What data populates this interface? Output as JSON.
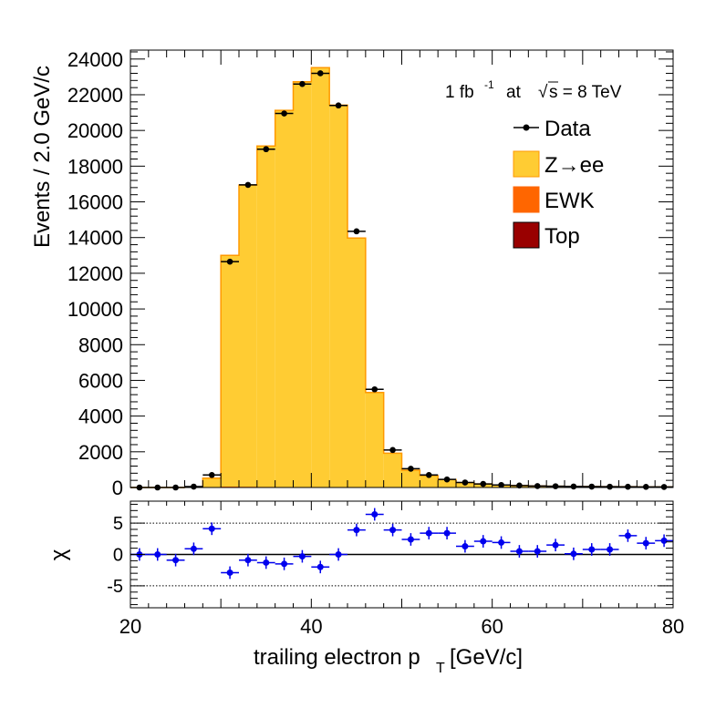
{
  "chart_data": [
    {
      "type": "bar",
      "panel": "main",
      "ylabel": "Events / 2.0 GeV/c",
      "xlim": [
        20,
        80
      ],
      "ylim": [
        0,
        24500
      ],
      "yticks": [
        0,
        2000,
        4000,
        6000,
        8000,
        10000,
        12000,
        14000,
        16000,
        18000,
        20000,
        22000,
        24000
      ],
      "bin_width": 2,
      "bin_edges_start": [
        20,
        22,
        24,
        26,
        28,
        30,
        32,
        34,
        36,
        38,
        40,
        42,
        44,
        46,
        48,
        50,
        52,
        54,
        56,
        58,
        60,
        62,
        64,
        66,
        68,
        70,
        72,
        74,
        76,
        78
      ],
      "series": [
        {
          "name": "Z→ee",
          "kind": "stacked-histogram",
          "color": "#ffcc33",
          "edge": "#ff9900",
          "values": [
            0,
            0,
            0,
            20,
            500,
            12950,
            16900,
            19100,
            21100,
            22700,
            23500,
            21400,
            13950,
            5300,
            1900,
            950,
            650,
            430,
            260,
            180,
            130,
            100,
            80,
            60,
            50,
            45,
            40,
            35,
            30,
            25
          ]
        },
        {
          "name": "EWK",
          "kind": "stacked-histogram",
          "color": "#ff6600",
          "values": [
            0,
            0,
            0,
            0,
            20,
            40,
            30,
            20,
            15,
            15,
            10,
            10,
            10,
            10,
            10,
            10,
            10,
            10,
            10,
            10,
            8,
            8,
            6,
            6,
            5,
            5,
            4,
            4,
            3,
            3
          ]
        },
        {
          "name": "Top",
          "kind": "stacked-histogram",
          "color": "#990000",
          "values": [
            0,
            0,
            0,
            0,
            5,
            10,
            10,
            10,
            10,
            10,
            10,
            10,
            10,
            8,
            8,
            8,
            6,
            6,
            5,
            5,
            5,
            4,
            4,
            4,
            3,
            3,
            3,
            3,
            2,
            2
          ]
        },
        {
          "name": "Data",
          "kind": "points",
          "color": "#000000",
          "x": [
            21,
            23,
            25,
            27,
            29,
            31,
            33,
            35,
            37,
            39,
            41,
            43,
            45,
            47,
            49,
            51,
            53,
            55,
            57,
            59,
            61,
            63,
            65,
            67,
            69,
            71,
            73,
            75,
            77,
            79
          ],
          "values": [
            0,
            0,
            0,
            50,
            700,
            12650,
            16950,
            18950,
            20950,
            22600,
            23200,
            21400,
            14350,
            5500,
            2100,
            1050,
            700,
            450,
            280,
            200,
            140,
            110,
            80,
            70,
            55,
            50,
            45,
            40,
            35,
            30
          ]
        }
      ],
      "legend": [
        "Data",
        "Z→ee",
        "EWK",
        "Top"
      ],
      "legend_placement": "top-right",
      "annotation": {
        "lumi": "1 fb",
        "lumi_exp": "-1",
        "at": "at",
        "sqrt": "√",
        "energy": "s = 8 TeV"
      }
    },
    {
      "type": "scatter",
      "panel": "ratio",
      "xlabel_main": "trailing electron p",
      "xlabel_sub": "T",
      "xlabel_unit": "[GeV/c]",
      "ylabel": "χ",
      "xlim": [
        20,
        80
      ],
      "ylim": [
        -8.5,
        8.5
      ],
      "xticks": [
        20,
        40,
        60,
        80
      ],
      "yticks": [
        -5,
        0,
        5
      ],
      "reference_lines": [
        -5,
        0,
        5
      ],
      "series": [
        {
          "name": "",
          "color": "#0000ee",
          "x": [
            21,
            23,
            25,
            27,
            29,
            31,
            33,
            35,
            37,
            39,
            41,
            43,
            45,
            47,
            49,
            51,
            53,
            55,
            57,
            59,
            61,
            63,
            65,
            67,
            69,
            71,
            73,
            75,
            77,
            79
          ],
          "values": [
            0,
            0,
            -0.9,
            0.9,
            4.1,
            -2.9,
            -0.9,
            -1.3,
            -1.5,
            -0.3,
            -2.0,
            0,
            3.9,
            6.4,
            3.9,
            2.4,
            3.4,
            3.4,
            1.3,
            2.1,
            1.9,
            0.5,
            0.5,
            1.5,
            0.1,
            0.8,
            0.8,
            3.0,
            1.8,
            2.2
          ]
        }
      ]
    }
  ]
}
